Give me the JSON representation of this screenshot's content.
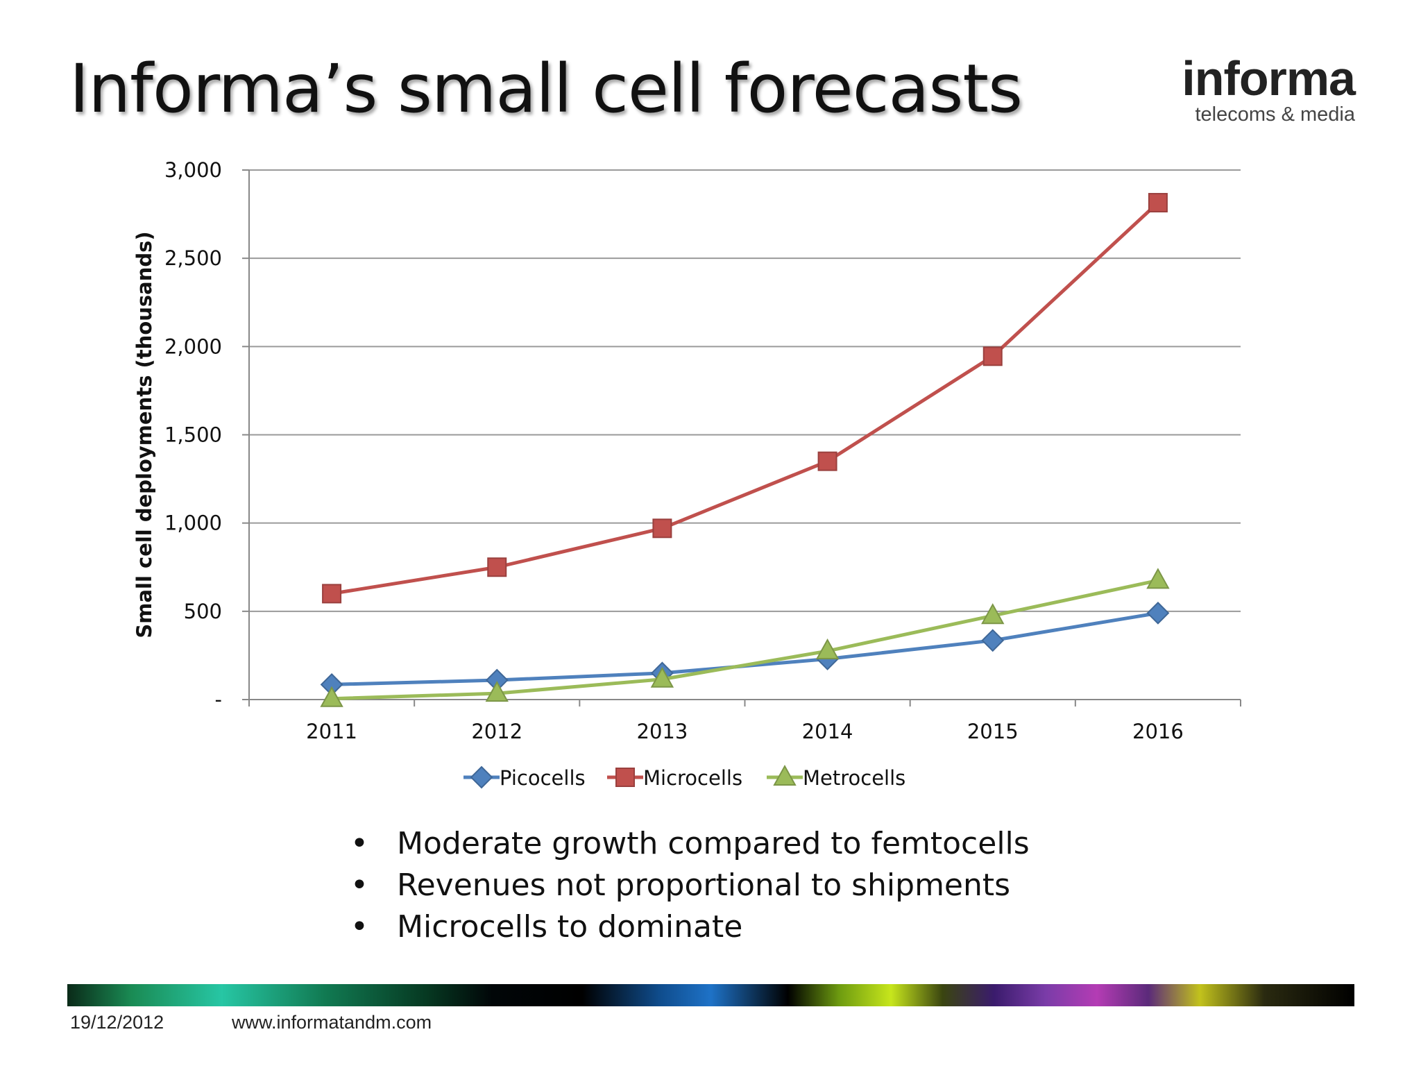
{
  "slide": {
    "title": "Informa’s small cell forecasts",
    "logo": {
      "wordmark": "informa",
      "tagline": "telecoms & media"
    },
    "bullets": [
      "Moderate growth compared to femtocells",
      "Revenues not proportional to shipments",
      "Microcells to dominate"
    ],
    "bullet_symbol": "•",
    "footer": {
      "date": "19/12/2012",
      "url": "www.informatandm.com"
    }
  },
  "chart_data": {
    "type": "line",
    "ylabel": "Small cell deployments (thousands)",
    "categories": [
      "2011",
      "2012",
      "2013",
      "2014",
      "2015",
      "2016"
    ],
    "yticks": [
      0,
      500,
      1000,
      1500,
      2000,
      2500,
      3000
    ],
    "ytick_labels": [
      "-",
      "500",
      "1,000",
      "1,500",
      "2,000",
      "2,500",
      "3,000"
    ],
    "ylim": [
      0,
      3000
    ],
    "grid": true,
    "legend_position": "bottom",
    "series": [
      {
        "name": "Picocells",
        "marker": "diamond",
        "color": "#4f81bd",
        "values": [
          85,
          110,
          150,
          230,
          335,
          490
        ]
      },
      {
        "name": "Microcells",
        "marker": "square",
        "color": "#c0504d",
        "values": [
          600,
          750,
          970,
          1350,
          1945,
          2815
        ]
      },
      {
        "name": "Metrocells",
        "marker": "triangle",
        "color": "#9bbb59",
        "values": [
          5,
          35,
          115,
          275,
          475,
          675
        ]
      }
    ]
  }
}
